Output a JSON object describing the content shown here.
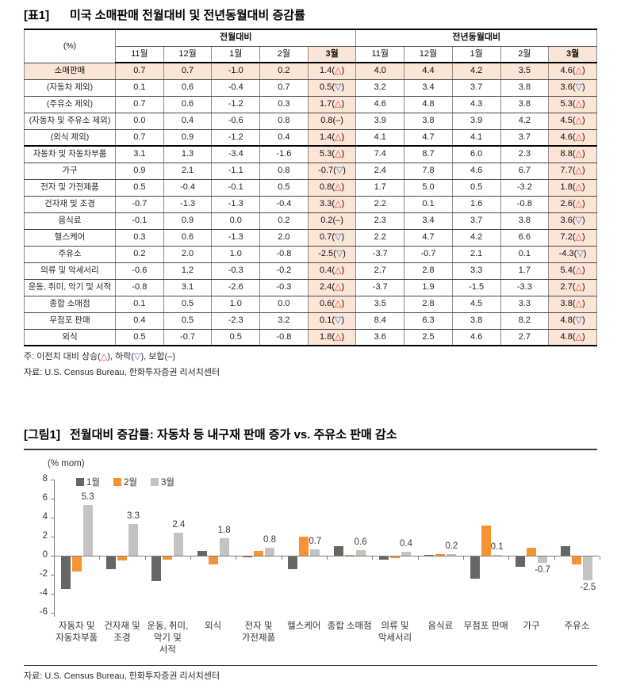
{
  "table": {
    "tag": "[표1]",
    "title": "미국 소매판매 전월대비 및 전년동월대비 증감률",
    "unit_label": "(%)",
    "group_headers": [
      "전월대비",
      "전년동월대비"
    ],
    "month_headers": [
      "11월",
      "12월",
      "1월",
      "2월",
      "3월"
    ],
    "rows": [
      {
        "label": "소매판매",
        "highlight": true,
        "mom": [
          "0.7",
          "0.7",
          "-1.0",
          "0.2"
        ],
        "mom_last": {
          "value": "1.4",
          "dir": "up"
        },
        "yoy": [
          "4.0",
          "4.4",
          "4.2",
          "3.5"
        ],
        "yoy_last": {
          "value": "4.6",
          "dir": "up"
        }
      },
      {
        "label": "(자동차 제외)",
        "mom": [
          "0.1",
          "0.6",
          "-0.4",
          "0.7"
        ],
        "mom_last": {
          "value": "0.5",
          "dir": "down"
        },
        "yoy": [
          "3.2",
          "3.4",
          "3.7",
          "3.8"
        ],
        "yoy_last": {
          "value": "3.6",
          "dir": "down"
        }
      },
      {
        "label": "(주유소 제외)",
        "mom": [
          "0.7",
          "0.6",
          "-1.2",
          "0.3"
        ],
        "mom_last": {
          "value": "1.7",
          "dir": "up"
        },
        "yoy": [
          "4.6",
          "4.8",
          "4.3",
          "3.8"
        ],
        "yoy_last": {
          "value": "5.3",
          "dir": "up"
        }
      },
      {
        "label": "(자동차 및 주유소 제외)",
        "mom": [
          "0.0",
          "0.4",
          "-0.6",
          "0.8"
        ],
        "mom_last": {
          "value": "0.8",
          "dir": "flat"
        },
        "yoy": [
          "3.9",
          "3.8",
          "3.9",
          "4.2"
        ],
        "yoy_last": {
          "value": "4.5",
          "dir": "up"
        }
      },
      {
        "label": "(외식 제외)",
        "separator": true,
        "mom": [
          "0.7",
          "0.9",
          "-1.2",
          "0.4"
        ],
        "mom_last": {
          "value": "1.4",
          "dir": "up"
        },
        "yoy": [
          "4.1",
          "4.7",
          "4.1",
          "3.7"
        ],
        "yoy_last": {
          "value": "4.6",
          "dir": "up"
        }
      },
      {
        "label": "자동차 및 자동차부품",
        "mom": [
          "3.1",
          "1.3",
          "-3.4",
          "-1.6"
        ],
        "mom_last": {
          "value": "5.3",
          "dir": "up"
        },
        "yoy": [
          "7.4",
          "8.7",
          "6.0",
          "2.3"
        ],
        "yoy_last": {
          "value": "8.8",
          "dir": "up"
        }
      },
      {
        "label": "가구",
        "mom": [
          "0.9",
          "2.1",
          "-1.1",
          "0.8"
        ],
        "mom_last": {
          "value": "-0.7",
          "dir": "down"
        },
        "yoy": [
          "2.4",
          "7.8",
          "4.6",
          "6.7"
        ],
        "yoy_last": {
          "value": "7.7",
          "dir": "up"
        }
      },
      {
        "label": "전자 및 가전제품",
        "mom": [
          "0.5",
          "-0.4",
          "-0.1",
          "0.5"
        ],
        "mom_last": {
          "value": "0.8",
          "dir": "up"
        },
        "yoy": [
          "1.7",
          "5.0",
          "0.5",
          "-3.2"
        ],
        "yoy_last": {
          "value": "1.8",
          "dir": "up"
        }
      },
      {
        "label": "건자재 및 조경",
        "mom": [
          "-0.7",
          "-1.3",
          "-1.3",
          "-0.4"
        ],
        "mom_last": {
          "value": "3.3",
          "dir": "up"
        },
        "yoy": [
          "2.2",
          "0.1",
          "1.6",
          "-0.8"
        ],
        "yoy_last": {
          "value": "2.6",
          "dir": "up"
        }
      },
      {
        "label": "음식료",
        "mom": [
          "-0.1",
          "0.9",
          "0.0",
          "0.2"
        ],
        "mom_last": {
          "value": "0.2",
          "dir": "flat"
        },
        "yoy": [
          "2.3",
          "3.4",
          "3.7",
          "3.8"
        ],
        "yoy_last": {
          "value": "3.6",
          "dir": "down"
        }
      },
      {
        "label": "헬스케어",
        "mom": [
          "0.3",
          "0.6",
          "-1.3",
          "2.0"
        ],
        "mom_last": {
          "value": "0.7",
          "dir": "down"
        },
        "yoy": [
          "2.2",
          "4.7",
          "4.2",
          "6.6"
        ],
        "yoy_last": {
          "value": "7.2",
          "dir": "up"
        }
      },
      {
        "label": "주유소",
        "mom": [
          "0.2",
          "2.0",
          "1.0",
          "-0.8"
        ],
        "mom_last": {
          "value": "-2.5",
          "dir": "down"
        },
        "yoy": [
          "-3.7",
          "-0.7",
          "2.1",
          "0.1"
        ],
        "yoy_last": {
          "value": "-4.3",
          "dir": "down"
        }
      },
      {
        "label": "의류 및 악세서리",
        "mom": [
          "-0.6",
          "1.2",
          "-0.3",
          "-0.2"
        ],
        "mom_last": {
          "value": "0.4",
          "dir": "up"
        },
        "yoy": [
          "2.7",
          "2.8",
          "3.3",
          "1.7"
        ],
        "yoy_last": {
          "value": "5.4",
          "dir": "up"
        }
      },
      {
        "label": "운동, 취미, 악기 및 서적",
        "mom": [
          "-0.8",
          "3.1",
          "-2.6",
          "-0.3"
        ],
        "mom_last": {
          "value": "2.4",
          "dir": "up"
        },
        "yoy": [
          "-3.7",
          "1.9",
          "-1.5",
          "-3.3"
        ],
        "yoy_last": {
          "value": "2.7",
          "dir": "up"
        }
      },
      {
        "label": "종합 소매점",
        "mom": [
          "0.1",
          "0.5",
          "1.0",
          "0.0"
        ],
        "mom_last": {
          "value": "0.6",
          "dir": "up"
        },
        "yoy": [
          "3.5",
          "2.8",
          "4.5",
          "3.3"
        ],
        "yoy_last": {
          "value": "3.8",
          "dir": "up"
        }
      },
      {
        "label": "무점포 판매",
        "mom": [
          "0.4",
          "0.5",
          "-2.3",
          "3.2"
        ],
        "mom_last": {
          "value": "0.1",
          "dir": "down"
        },
        "yoy": [
          "8.4",
          "6.3",
          "3.8",
          "8.2"
        ],
        "yoy_last": {
          "value": "4.8",
          "dir": "down"
        }
      },
      {
        "label": "외식",
        "mom": [
          "0.5",
          "-0.7",
          "0.5",
          "-0.8"
        ],
        "mom_last": {
          "value": "1.8",
          "dir": "up"
        },
        "yoy": [
          "3.6",
          "2.5",
          "4.6",
          "2.7"
        ],
        "yoy_last": {
          "value": "4.8",
          "dir": "up"
        }
      }
    ],
    "note_parts": [
      {
        "text": "주: 이전치 대비 상승("
      },
      {
        "text": "△",
        "color": "#E8432D"
      },
      {
        "text": "), 하락("
      },
      {
        "text": "▽",
        "color": "#4472C4"
      },
      {
        "text": "), 보합(–)"
      }
    ],
    "source": "자료: U.S. Census Bureau, 한화투자증권 리서치센터"
  },
  "chart": {
    "tag": "[그림1]",
    "title": "전월대비 증감률: 자동차 등 내구재 판매 증가 vs. 주유소 판매 감소",
    "unit_label": "(% mom)",
    "source": "자료: U.S. Census Bureau, 한화투자증권 리서치센터"
  },
  "chart_data": {
    "type": "bar",
    "categories": [
      "자동차 및\n자동차부품",
      "건자재 및\n조경",
      "운동, 취미,\n악기 및\n서적",
      "외식",
      "전자 및\n가전제품",
      "헬스케어",
      "종합 소매점",
      "의류 및\n악세서리",
      "음식료",
      "무점포 판매",
      "가구",
      "주유소"
    ],
    "series": [
      {
        "name": "1월",
        "color": "#666666",
        "values": [
          -3.4,
          -1.3,
          -2.6,
          0.5,
          -0.1,
          -1.3,
          1.0,
          -0.3,
          0.0,
          -2.3,
          -1.1,
          1.0
        ]
      },
      {
        "name": "2월",
        "color": "#F79333",
        "values": [
          -1.6,
          -0.4,
          -0.3,
          -0.8,
          0.5,
          2.0,
          0.0,
          -0.2,
          0.2,
          3.2,
          0.8,
          -0.8
        ]
      },
      {
        "name": "3월",
        "color": "#C3C3C3",
        "values": [
          5.3,
          3.3,
          2.4,
          1.8,
          0.8,
          0.7,
          0.6,
          0.4,
          0.2,
          0.1,
          -0.7,
          -2.5
        ]
      }
    ],
    "data_label_series": "3월",
    "title": "전월대비 증감률: 자동차 등 내구재 판매 증가 vs. 주유소 판매 감소",
    "xlabel": "",
    "ylabel": "(% mom)",
    "ylim": [
      -6,
      8
    ],
    "ytick_step": 2,
    "grid": false,
    "legend_position": "top-left"
  },
  "symbols": {
    "up": "△",
    "down": "▽",
    "flat": "–"
  },
  "colors": {
    "highlight_bg": "#FBE5D6",
    "up": "#E8432D",
    "down": "#4472C4",
    "axis": "#7f7f7f",
    "bar_jan": "#666666",
    "bar_feb": "#F79333",
    "bar_mar": "#C3C3C3"
  }
}
